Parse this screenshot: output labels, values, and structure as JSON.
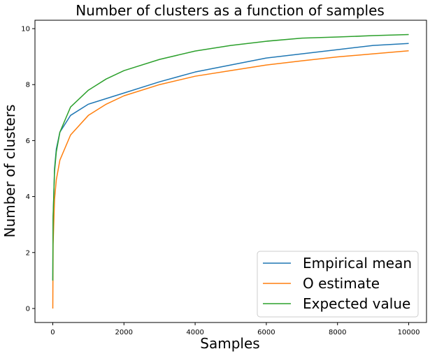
{
  "chart_data": {
    "type": "line",
    "title": "Number of clusters as a function of samples",
    "xlabel": "Samples",
    "ylabel": "Number of clusters",
    "xlim": [
      -500,
      10500
    ],
    "ylim": [
      -0.5,
      10.3
    ],
    "xticks": [
      "0",
      "2000",
      "4000",
      "6000",
      "8000",
      "10000"
    ],
    "yticks": [
      "0",
      "2",
      "4",
      "6",
      "8",
      "10"
    ],
    "grid": false,
    "legend_position": "lower-right",
    "series": [
      {
        "name": "Empirical mean",
        "color": "#1f77b4",
        "x": [
          1,
          10,
          50,
          100,
          200,
          500,
          1000,
          1500,
          2000,
          3000,
          4000,
          5000,
          6000,
          7000,
          8000,
          9000,
          10000
        ],
        "y": [
          1.0,
          3.2,
          5.0,
          5.7,
          6.3,
          6.9,
          7.3,
          7.5,
          7.7,
          8.1,
          8.45,
          8.7,
          8.95,
          9.1,
          9.25,
          9.4,
          9.47
        ]
      },
      {
        "name": "O estimate",
        "color": "#ff7f0e",
        "x": [
          1,
          10,
          50,
          100,
          200,
          500,
          1000,
          1500,
          2000,
          3000,
          4000,
          5000,
          6000,
          7000,
          8000,
          9000,
          10000
        ],
        "y": [
          0.0,
          2.3,
          3.9,
          4.6,
          5.3,
          6.2,
          6.9,
          7.3,
          7.6,
          8.0,
          8.3,
          8.5,
          8.7,
          8.85,
          8.99,
          9.1,
          9.21
        ]
      },
      {
        "name": "Expected value",
        "color": "#2ca02c",
        "x": [
          1,
          10,
          50,
          100,
          200,
          500,
          1000,
          1500,
          2000,
          3000,
          4000,
          5000,
          6000,
          7000,
          8000,
          9000,
          10000
        ],
        "y": [
          1.0,
          3.3,
          4.9,
          5.6,
          6.3,
          7.2,
          7.8,
          8.2,
          8.5,
          8.9,
          9.2,
          9.4,
          9.55,
          9.66,
          9.7,
          9.75,
          9.79
        ]
      }
    ]
  }
}
